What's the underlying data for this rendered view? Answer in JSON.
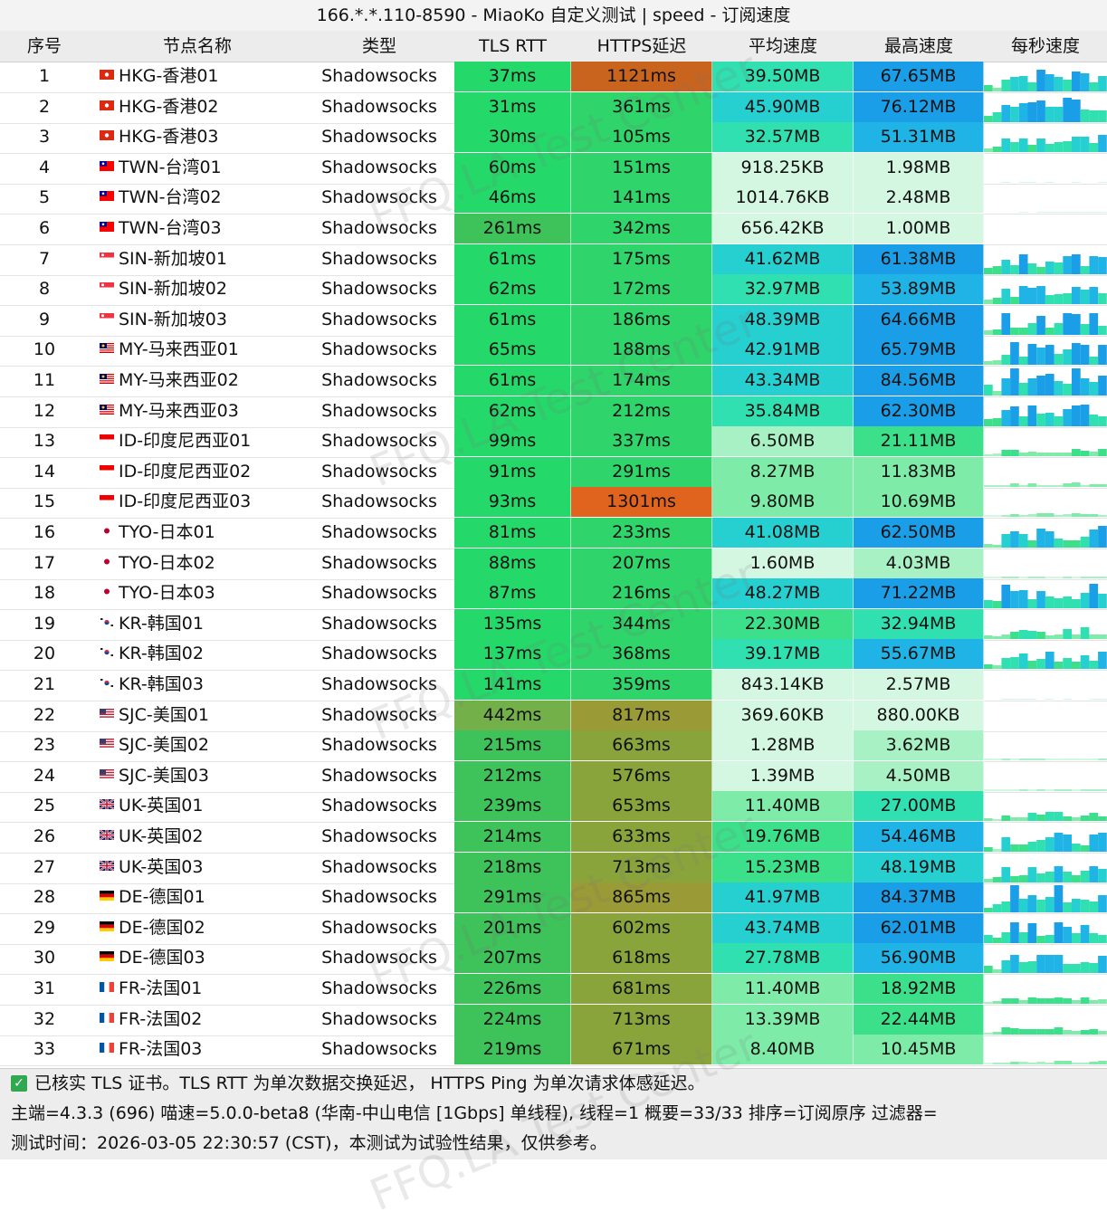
{
  "window": {
    "title": "166.*.*.110-8590 - MiaoKo 自定义测试 | speed - 订阅速度"
  },
  "columns": {
    "index": "序号",
    "name": "节点名称",
    "type": "类型",
    "tls_rtt": "TLS RTT",
    "https": "HTTPS延迟",
    "avg": "平均速度",
    "max": "最高速度",
    "per_sec": "每秒速度"
  },
  "rows": [
    {
      "n": "1",
      "flag": "hk",
      "name": "HKG-香港01",
      "type": "Shadowsocks",
      "rtt": "37ms",
      "https": "1121ms",
      "avg": "39.50MB",
      "max": "67.65MB"
    },
    {
      "n": "2",
      "flag": "hk",
      "name": "HKG-香港02",
      "type": "Shadowsocks",
      "rtt": "31ms",
      "https": "361ms",
      "avg": "45.90MB",
      "max": "76.12MB"
    },
    {
      "n": "3",
      "flag": "hk",
      "name": "HKG-香港03",
      "type": "Shadowsocks",
      "rtt": "30ms",
      "https": "105ms",
      "avg": "32.57MB",
      "max": "51.31MB"
    },
    {
      "n": "4",
      "flag": "tw",
      "name": "TWN-台湾01",
      "type": "Shadowsocks",
      "rtt": "60ms",
      "https": "151ms",
      "avg": "918.25KB",
      "max": "1.98MB"
    },
    {
      "n": "5",
      "flag": "tw",
      "name": "TWN-台湾02",
      "type": "Shadowsocks",
      "rtt": "46ms",
      "https": "141ms",
      "avg": "1014.76KB",
      "max": "2.48MB"
    },
    {
      "n": "6",
      "flag": "tw",
      "name": "TWN-台湾03",
      "type": "Shadowsocks",
      "rtt": "261ms",
      "https": "342ms",
      "avg": "656.42KB",
      "max": "1.00MB"
    },
    {
      "n": "7",
      "flag": "sg",
      "name": "SIN-新加坡01",
      "type": "Shadowsocks",
      "rtt": "61ms",
      "https": "175ms",
      "avg": "41.62MB",
      "max": "61.38MB"
    },
    {
      "n": "8",
      "flag": "sg",
      "name": "SIN-新加坡02",
      "type": "Shadowsocks",
      "rtt": "62ms",
      "https": "172ms",
      "avg": "32.97MB",
      "max": "53.89MB"
    },
    {
      "n": "9",
      "flag": "sg",
      "name": "SIN-新加坡03",
      "type": "Shadowsocks",
      "rtt": "61ms",
      "https": "186ms",
      "avg": "48.39MB",
      "max": "64.66MB"
    },
    {
      "n": "10",
      "flag": "my",
      "name": "MY-马来西亚01",
      "type": "Shadowsocks",
      "rtt": "65ms",
      "https": "188ms",
      "avg": "42.91MB",
      "max": "65.79MB"
    },
    {
      "n": "11",
      "flag": "my",
      "name": "MY-马来西亚02",
      "type": "Shadowsocks",
      "rtt": "61ms",
      "https": "174ms",
      "avg": "43.34MB",
      "max": "84.56MB"
    },
    {
      "n": "12",
      "flag": "my",
      "name": "MY-马来西亚03",
      "type": "Shadowsocks",
      "rtt": "62ms",
      "https": "212ms",
      "avg": "35.84MB",
      "max": "62.30MB"
    },
    {
      "n": "13",
      "flag": "id",
      "name": "ID-印度尼西亚01",
      "type": "Shadowsocks",
      "rtt": "99ms",
      "https": "337ms",
      "avg": "6.50MB",
      "max": "21.11MB"
    },
    {
      "n": "14",
      "flag": "id",
      "name": "ID-印度尼西亚02",
      "type": "Shadowsocks",
      "rtt": "91ms",
      "https": "291ms",
      "avg": "8.27MB",
      "max": "11.83MB"
    },
    {
      "n": "15",
      "flag": "id",
      "name": "ID-印度尼西亚03",
      "type": "Shadowsocks",
      "rtt": "93ms",
      "https": "1301ms",
      "avg": "9.80MB",
      "max": "10.69MB"
    },
    {
      "n": "16",
      "flag": "jp",
      "name": "TYO-日本01",
      "type": "Shadowsocks",
      "rtt": "81ms",
      "https": "233ms",
      "avg": "41.08MB",
      "max": "62.50MB"
    },
    {
      "n": "17",
      "flag": "jp",
      "name": "TYO-日本02",
      "type": "Shadowsocks",
      "rtt": "88ms",
      "https": "207ms",
      "avg": "1.60MB",
      "max": "4.03MB"
    },
    {
      "n": "18",
      "flag": "jp",
      "name": "TYO-日本03",
      "type": "Shadowsocks",
      "rtt": "87ms",
      "https": "216ms",
      "avg": "48.27MB",
      "max": "71.22MB"
    },
    {
      "n": "19",
      "flag": "kr",
      "name": "KR-韩国01",
      "type": "Shadowsocks",
      "rtt": "135ms",
      "https": "344ms",
      "avg": "22.30MB",
      "max": "32.94MB"
    },
    {
      "n": "20",
      "flag": "kr",
      "name": "KR-韩国02",
      "type": "Shadowsocks",
      "rtt": "137ms",
      "https": "368ms",
      "avg": "39.17MB",
      "max": "55.67MB"
    },
    {
      "n": "21",
      "flag": "kr",
      "name": "KR-韩国03",
      "type": "Shadowsocks",
      "rtt": "141ms",
      "https": "359ms",
      "avg": "843.14KB",
      "max": "2.57MB"
    },
    {
      "n": "22",
      "flag": "us",
      "name": "SJC-美国01",
      "type": "Shadowsocks",
      "rtt": "442ms",
      "https": "817ms",
      "avg": "369.60KB",
      "max": "880.00KB"
    },
    {
      "n": "23",
      "flag": "us",
      "name": "SJC-美国02",
      "type": "Shadowsocks",
      "rtt": "215ms",
      "https": "663ms",
      "avg": "1.28MB",
      "max": "3.62MB"
    },
    {
      "n": "24",
      "flag": "us",
      "name": "SJC-美国03",
      "type": "Shadowsocks",
      "rtt": "212ms",
      "https": "576ms",
      "avg": "1.39MB",
      "max": "4.50MB"
    },
    {
      "n": "25",
      "flag": "uk",
      "name": "UK-英国01",
      "type": "Shadowsocks",
      "rtt": "239ms",
      "https": "653ms",
      "avg": "11.40MB",
      "max": "27.00MB"
    },
    {
      "n": "26",
      "flag": "uk",
      "name": "UK-英国02",
      "type": "Shadowsocks",
      "rtt": "214ms",
      "https": "633ms",
      "avg": "19.76MB",
      "max": "54.46MB"
    },
    {
      "n": "27",
      "flag": "uk",
      "name": "UK-英国03",
      "type": "Shadowsocks",
      "rtt": "218ms",
      "https": "713ms",
      "avg": "15.23MB",
      "max": "48.19MB"
    },
    {
      "n": "28",
      "flag": "de",
      "name": "DE-德国01",
      "type": "Shadowsocks",
      "rtt": "291ms",
      "https": "865ms",
      "avg": "41.97MB",
      "max": "84.37MB"
    },
    {
      "n": "29",
      "flag": "de",
      "name": "DE-德国02",
      "type": "Shadowsocks",
      "rtt": "201ms",
      "https": "602ms",
      "avg": "43.74MB",
      "max": "62.01MB"
    },
    {
      "n": "30",
      "flag": "de",
      "name": "DE-德国03",
      "type": "Shadowsocks",
      "rtt": "207ms",
      "https": "618ms",
      "avg": "27.78MB",
      "max": "56.90MB"
    },
    {
      "n": "31",
      "flag": "fr",
      "name": "FR-法国01",
      "type": "Shadowsocks",
      "rtt": "226ms",
      "https": "681ms",
      "avg": "11.40MB",
      "max": "18.92MB"
    },
    {
      "n": "32",
      "flag": "fr",
      "name": "FR-法国02",
      "type": "Shadowsocks",
      "rtt": "224ms",
      "https": "713ms",
      "avg": "13.39MB",
      "max": "22.44MB"
    },
    {
      "n": "33",
      "flag": "fr",
      "name": "FR-法国03",
      "type": "Shadowsocks",
      "rtt": "219ms",
      "https": "671ms",
      "avg": "8.40MB",
      "max": "10.45MB"
    }
  ],
  "footer": {
    "line1": "已核实 TLS 证书。TLS RTT 为单次数据交换延迟， HTTPS Ping 为单次请求体感延迟。",
    "line2": "主端=4.3.3 (696) 喵速=5.0.0-beta8 (华南-中山电信 [1Gbps] 单线程), 线程=1 概要=33/33 排序=订阅原序 过滤器=",
    "line3": "测试时间：2026-03-05 22:30:57 (CST)，本测试为试验性结果，仅供参考。"
  },
  "watermark": "FFQ.LA Test Center",
  "colors": {
    "header_bg": "#ececec",
    "rtt_good": "#25d86a",
    "rtt_mid": "#3ec25a",
    "rtt_slow": "#73b04a",
    "https_fast": "#2fd46a",
    "https_slow": "#8aa43c",
    "https_bad": "#c8641e",
    "speed_low": "#c8f5d8",
    "speed_mid": "#33e3a6",
    "speed_high": "#1aa3ea"
  }
}
